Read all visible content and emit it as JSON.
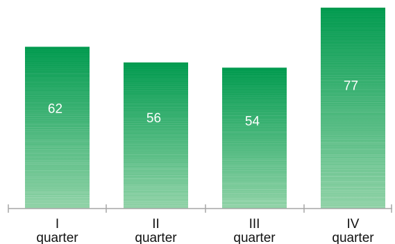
{
  "chart_data": {
    "type": "bar",
    "categories": [
      [
        "I",
        "quarter"
      ],
      [
        "II",
        "quarter"
      ],
      [
        "III",
        "quarter"
      ],
      [
        "IV",
        "quarter"
      ]
    ],
    "values": [
      62,
      56,
      54,
      77
    ],
    "value_labels": [
      "62",
      "56",
      "54",
      "77"
    ],
    "ylim": [
      0,
      77
    ],
    "grid": false,
    "legend": "none",
    "colors": {
      "bar_top": "#009a4e",
      "bar_bottom": "#8fd2a6",
      "stripe": "#ffffff",
      "axis": "#a6a6a6",
      "label": "#111111",
      "value_text": "#ffffff"
    }
  }
}
